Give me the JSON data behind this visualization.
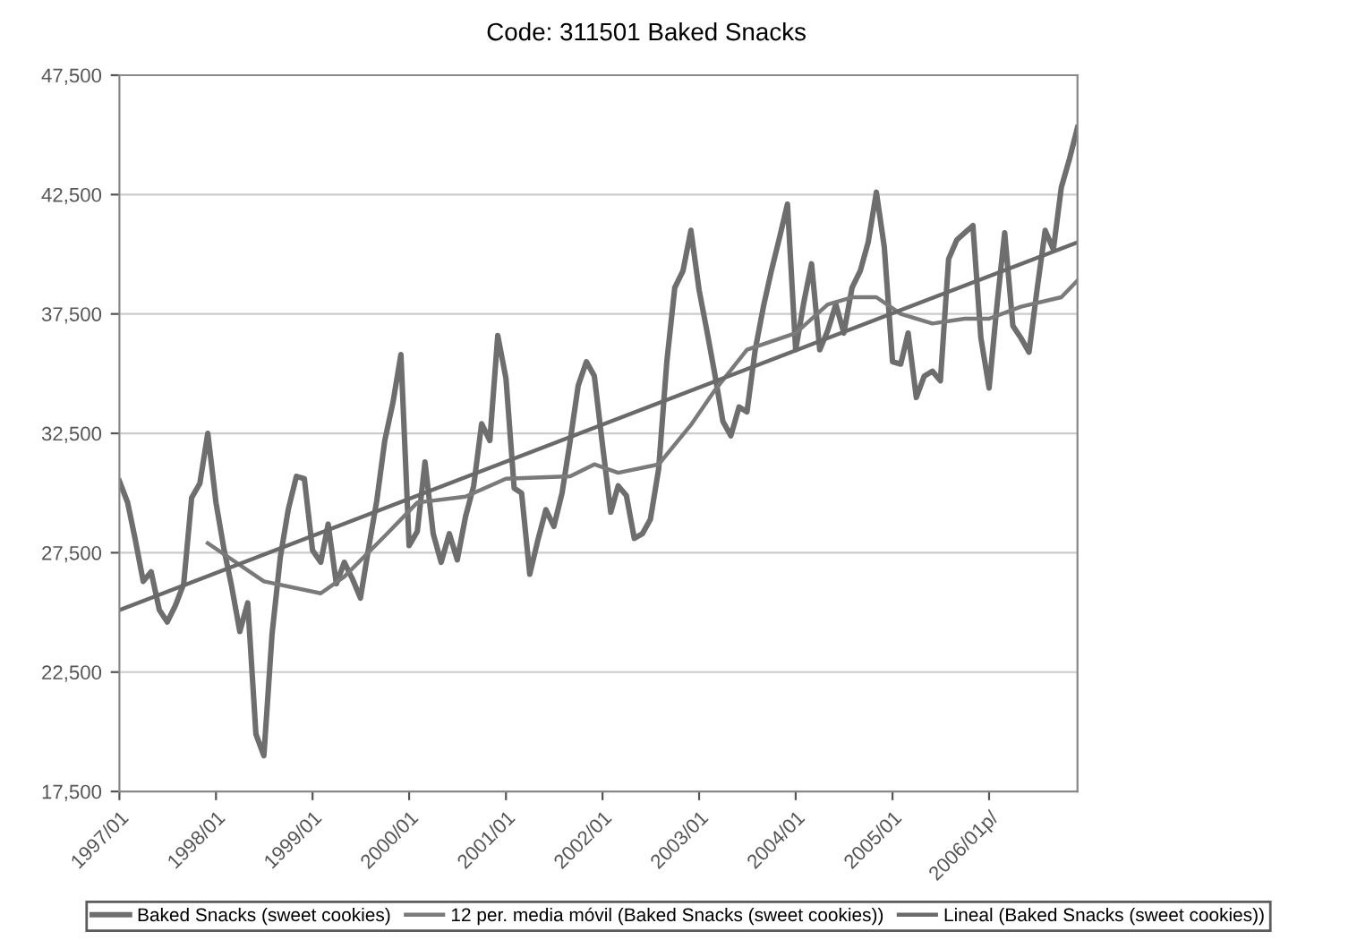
{
  "chart_data": {
    "type": "line",
    "title": "Code: 311501 Baked Snacks",
    "x": [
      "1997-01",
      "1997-02",
      "1997-03",
      "1997-04",
      "1997-05",
      "1997-06",
      "1997-07",
      "1997-08",
      "1997-09",
      "1997-10",
      "1997-11",
      "1997-12",
      "1998-01",
      "1998-02",
      "1998-03",
      "1998-04",
      "1998-05",
      "1998-06",
      "1998-07",
      "1998-08",
      "1998-09",
      "1998-10",
      "1998-11",
      "1998-12",
      "1999-01",
      "1999-02",
      "1999-03",
      "1999-04",
      "1999-05",
      "1999-06",
      "1999-07",
      "1999-08",
      "1999-09",
      "1999-10",
      "1999-11",
      "1999-12",
      "2000-01",
      "2000-02",
      "2000-03",
      "2000-04",
      "2000-05",
      "2000-06",
      "2000-07",
      "2000-08",
      "2000-09",
      "2000-10",
      "2000-11",
      "2000-12",
      "2001-01",
      "2001-02",
      "2001-03",
      "2001-04",
      "2001-05",
      "2001-06",
      "2001-07",
      "2001-08",
      "2001-09",
      "2001-10",
      "2001-11",
      "2001-12",
      "2002-01",
      "2002-02",
      "2002-03",
      "2002-04",
      "2002-05",
      "2002-06",
      "2002-07",
      "2002-08",
      "2002-09",
      "2002-10",
      "2002-11",
      "2002-12",
      "2003-01",
      "2003-02",
      "2003-03",
      "2003-04",
      "2003-05",
      "2003-06",
      "2003-07",
      "2003-08",
      "2003-09",
      "2003-10",
      "2003-11",
      "2003-12",
      "2004-01",
      "2004-02",
      "2004-03",
      "2004-04",
      "2004-05",
      "2004-06",
      "2004-07",
      "2004-08",
      "2004-09",
      "2004-10",
      "2004-11",
      "2004-12",
      "2005-01",
      "2005-02",
      "2005-03",
      "2005-04",
      "2005-05",
      "2005-06",
      "2005-07",
      "2005-08",
      "2005-09",
      "2005-10",
      "2005-11",
      "2005-12",
      "2006-01",
      "2006-02",
      "2006-03",
      "2006-04",
      "2006-05",
      "2006-06",
      "2006-07",
      "2006-08",
      "2006-09",
      "2006-10",
      "2006-11",
      "2006-12"
    ],
    "series": [
      {
        "name": "Baked Snacks (sweet cookies)",
        "color": "#6e6e6e",
        "values": [
          30500,
          29600,
          28100,
          26300,
          26700,
          25100,
          24600,
          25300,
          26200,
          29800,
          30400,
          32500,
          29600,
          27600,
          26100,
          24200,
          25400,
          19900,
          19000,
          24100,
          27300,
          29300,
          30700,
          30600,
          27600,
          27100,
          28700,
          26200,
          27100,
          26400,
          25600,
          27700,
          29700,
          32200,
          33800,
          35800,
          27800,
          28400,
          31300,
          28300,
          27100,
          28300,
          27200,
          29000,
          30300,
          32900,
          32200,
          36600,
          34800,
          30200,
          30000,
          26600,
          28000,
          29300,
          28600,
          30000,
          32200,
          34500,
          35500,
          34900,
          32000,
          29200,
          30300,
          29900,
          28100,
          28300,
          28900,
          31000,
          35500,
          38600,
          39300,
          41000,
          38500,
          36700,
          35000,
          33000,
          32400,
          33600,
          33400,
          36000,
          37800,
          39300,
          40700,
          42100,
          36000,
          38000,
          39600,
          36000,
          36800,
          37900,
          36700,
          38600,
          39300,
          40500,
          42600,
          40300,
          35500,
          35400,
          36700,
          34000,
          34900,
          35100,
          34700,
          39800,
          40600,
          40900,
          41200,
          36500,
          34400,
          38000,
          40900,
          37000,
          36500,
          35900,
          38500,
          41000,
          40200,
          42800,
          44000,
          45300
        ]
      },
      {
        "name": "12 per. media móvil (Baked Snacks (sweet cookies))",
        "color": "#7a7a7a",
        "x": [
          "1997-12",
          "1998-07",
          "1999-02",
          "1999-05",
          "1999-10",
          "2000-02",
          "2000-08",
          "2001-01",
          "2001-09",
          "2001-12",
          "2002-03",
          "2002-08",
          "2002-12",
          "2003-03",
          "2003-07",
          "2004-01",
          "2004-05",
          "2004-08",
          "2004-11",
          "2005-02",
          "2005-06",
          "2005-10",
          "2006-01",
          "2006-05",
          "2006-10",
          "2006-12"
        ],
        "values": [
          27900,
          26300,
          25800,
          26500,
          28200,
          29600,
          29850,
          30600,
          30700,
          31200,
          30850,
          31200,
          32850,
          34300,
          36000,
          36700,
          37900,
          38200,
          38200,
          37500,
          37100,
          37300,
          37300,
          37800,
          38200,
          38900
        ]
      },
      {
        "name": "Lineal (Baked Snacks (sweet cookies))",
        "color": "#6a6a6a",
        "x": [
          "1997-01",
          "2006-12"
        ],
        "values": [
          25100,
          40500
        ]
      }
    ],
    "ylim": [
      17500,
      47500
    ],
    "yticks": [
      {
        "value": 17500,
        "label": "17,500"
      },
      {
        "value": 22500,
        "label": "22,500"
      },
      {
        "value": 27500,
        "label": "27,500"
      },
      {
        "value": 32500,
        "label": "32,500"
      },
      {
        "value": 37500,
        "label": "37,500"
      },
      {
        "value": 42500,
        "label": "42,500"
      },
      {
        "value": 47500,
        "label": "47,500"
      }
    ],
    "xlim": [
      "1997-01",
      "2006-12"
    ],
    "xticks": [
      {
        "value": "1997-01",
        "label": "1997/01"
      },
      {
        "value": "1998-01",
        "label": "1998/01"
      },
      {
        "value": "1999-01",
        "label": "1999/01"
      },
      {
        "value": "2000-01",
        "label": "2000/01"
      },
      {
        "value": "2001-01",
        "label": "2001/01"
      },
      {
        "value": "2002-01",
        "label": "2002/01"
      },
      {
        "value": "2003-01",
        "label": "2003/01"
      },
      {
        "value": "2004-01",
        "label": "2004/01"
      },
      {
        "value": "2005-01",
        "label": "2005/01"
      },
      {
        "value": "2006-01",
        "label": "2006/01p/"
      }
    ],
    "grid": "y",
    "legend": "bottom",
    "marker": "none",
    "line_style": "solid"
  }
}
